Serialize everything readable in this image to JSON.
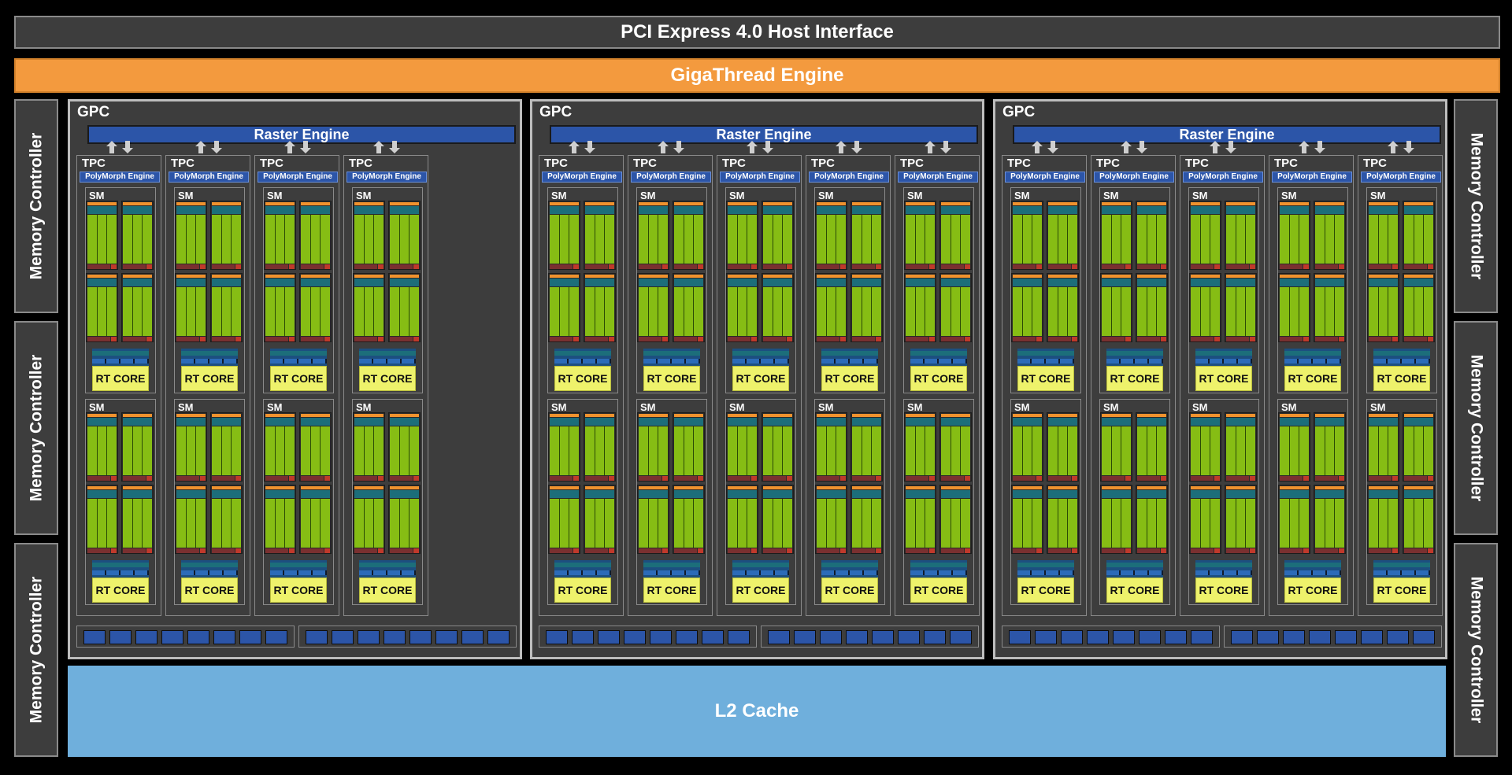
{
  "host_interface": {
    "label": "PCI Express 4.0 Host Interface"
  },
  "gigathread": {
    "label": "GigaThread Engine"
  },
  "memory_controller": {
    "label": "Memory Controller",
    "count_per_side": 3
  },
  "l2_cache": {
    "label": "L2 Cache"
  },
  "gpc_labels": {
    "gpc": "GPC",
    "raster": "Raster Engine",
    "tpc": "TPC",
    "polymorph": "PolyMorph Engine",
    "sm": "SM",
    "rt_core": "RT CORE"
  },
  "gpcs": [
    {
      "tpc_count": 4
    },
    {
      "tpc_count": 5
    },
    {
      "tpc_count": 5
    }
  ],
  "colors": {
    "background": "#000000",
    "panel": "#3d3d3d",
    "giga": "#f39a3e",
    "l2": "#6fafdc",
    "raster": "#2c55a8",
    "cuda_core": "#86bd14",
    "rt_core": "#eef26b"
  }
}
